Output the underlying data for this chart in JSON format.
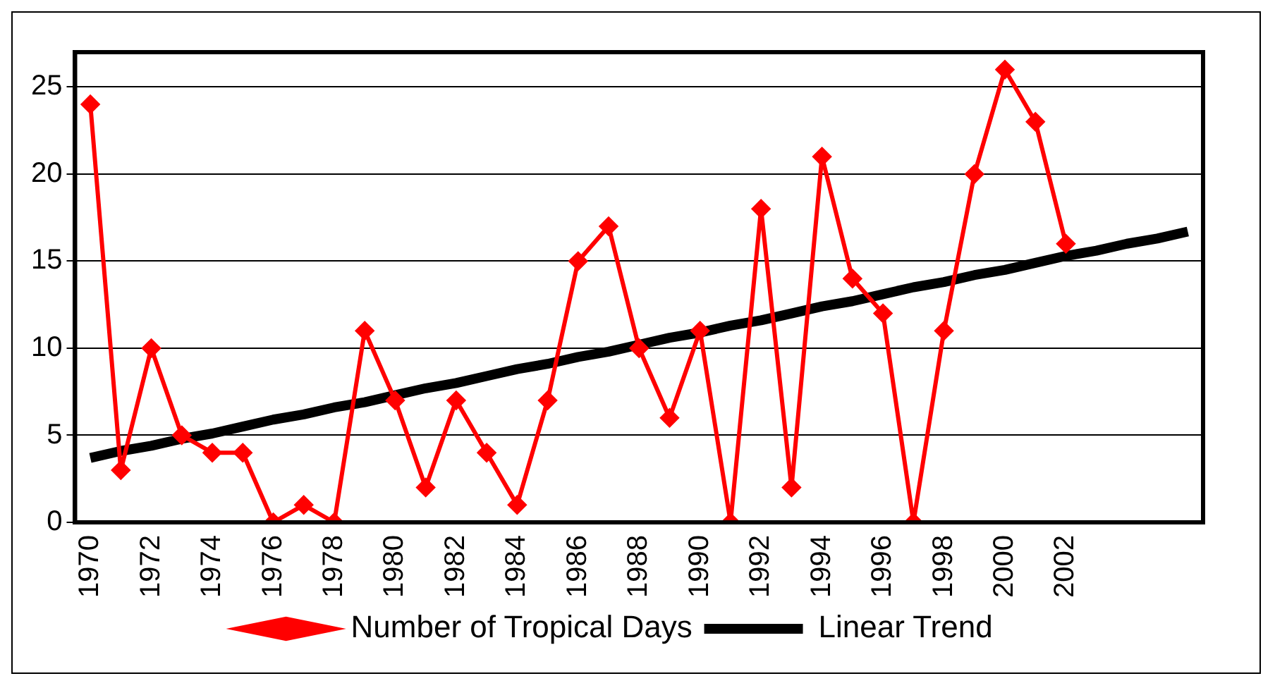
{
  "chart_data": {
    "type": "line",
    "categories": [
      "1970",
      null,
      "1972",
      null,
      "1974",
      null,
      "1976",
      null,
      "1978",
      null,
      "1980",
      null,
      "1982",
      null,
      "1984",
      null,
      "1986",
      null,
      "1988",
      null,
      "1990",
      null,
      "1992",
      null,
      "1994",
      null,
      "1996",
      null,
      "1998",
      null,
      "2000",
      null,
      "2002",
      null,
      null,
      null,
      null
    ],
    "series": [
      {
        "name": "Number of Tropical Days",
        "color": "#ff0000",
        "marker": "diamond",
        "values": [
          24,
          3,
          10,
          5,
          4,
          4,
          0,
          1,
          0,
          11,
          7,
          2,
          7,
          4,
          1,
          7,
          15,
          17,
          10,
          6,
          11,
          0,
          18,
          2,
          21,
          14,
          12,
          0,
          11,
          20,
          26,
          23,
          16,
          null,
          null,
          null,
          null
        ]
      },
      {
        "name": "Linear Trend",
        "color": "#000000",
        "marker": "none",
        "values": [
          3.7,
          4.1,
          4.4,
          4.8,
          5.1,
          5.5,
          5.9,
          6.2,
          6.6,
          6.9,
          7.3,
          7.7,
          8.0,
          8.4,
          8.8,
          9.1,
          9.5,
          9.8,
          10.2,
          10.6,
          10.9,
          11.3,
          11.6,
          12.0,
          12.4,
          12.7,
          13.1,
          13.5,
          13.8,
          14.2,
          14.5,
          14.9,
          15.3,
          15.6,
          16.0,
          16.3,
          16.7
        ]
      }
    ],
    "ylim": [
      0,
      27
    ],
    "yticks": [
      0,
      5,
      10,
      15,
      20,
      25
    ],
    "grid": "y",
    "legend": "bottom",
    "line_style": "solid"
  }
}
